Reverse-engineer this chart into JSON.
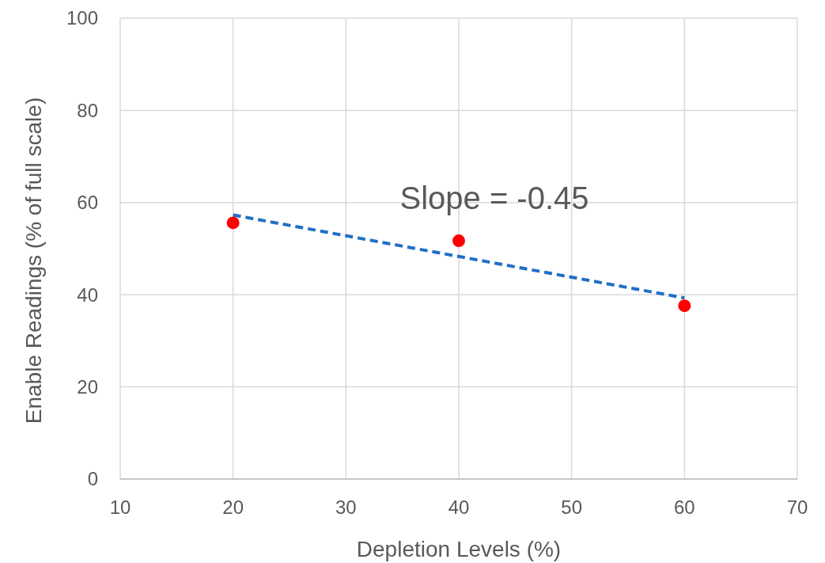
{
  "chart_data": {
    "type": "scatter",
    "xlabel": "Depletion Levels (%)",
    "ylabel": "Enable Readings (% of full scale)",
    "xlim": [
      10,
      70
    ],
    "xticks": [
      10,
      20,
      30,
      40,
      50,
      60,
      70
    ],
    "ylim": [
      0,
      100
    ],
    "yticks": [
      0,
      20,
      40,
      60,
      80,
      100
    ],
    "grid": true,
    "marker": "circle",
    "series": [
      {
        "color": "#ff0000",
        "x": [
          20,
          40,
          60
        ],
        "values": [
          55.6,
          51.7,
          37.6
        ]
      },
      {
        "type": "line",
        "color": "#1f6fc6",
        "line_style": "dashed",
        "marker": "none",
        "x": [
          20,
          60
        ],
        "values": [
          57.3,
          39.3
        ]
      }
    ],
    "annotations": [
      "Slope = -0.45"
    ]
  }
}
